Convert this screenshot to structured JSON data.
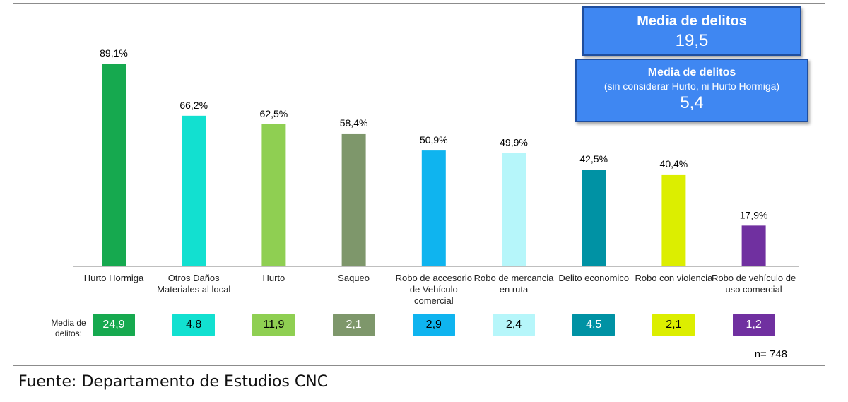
{
  "chart_data": {
    "type": "bar",
    "categories": [
      "Hurto Hormiga",
      "Otros Daños Materiales al local",
      "Hurto",
      "Saqueo",
      "Robo de accesorio de Vehículo comercial",
      "Robo de mercancia en ruta",
      "Delito economico",
      "Robo con violencia",
      "Robo de vehículo de uso comercial"
    ],
    "values": [
      89.1,
      66.2,
      62.5,
      58.4,
      50.9,
      49.9,
      42.5,
      40.4,
      17.9
    ],
    "value_labels": [
      "89,1%",
      "66,2%",
      "62,5%",
      "58,4%",
      "50,9%",
      "49,9%",
      "42,5%",
      "40,4%",
      "17,9%"
    ],
    "colors": [
      "#16a94f",
      "#12e0d0",
      "#8fcf52",
      "#7e976b",
      "#0fb4ef",
      "#b6f6fa",
      "#0092a4",
      "#dcee00",
      "#7030a0"
    ],
    "media_label": "Media de delitos:",
    "media_values": [
      "24,9",
      "4,8",
      "11,9",
      "2,1",
      "2,9",
      "2,4",
      "4,5",
      "2,1",
      "1,2"
    ],
    "media_text_colors": [
      "#ffffff",
      "#000000",
      "#000000",
      "#ffffff",
      "#000000",
      "#000000",
      "#ffffff",
      "#000000",
      "#ffffff"
    ],
    "ylim": [
      0,
      100
    ],
    "grid": false,
    "legend": "none"
  },
  "summary": {
    "box1_title": "Media de delitos",
    "box1_value": "19,5",
    "box2_title": "Media de delitos",
    "box2_subtitle": "(sin considerar Hurto, ni Hurto Hormiga)",
    "box2_value": "5,4"
  },
  "sample": "n= 748",
  "caption": "Fuente: Departamento de Estudios CNC"
}
